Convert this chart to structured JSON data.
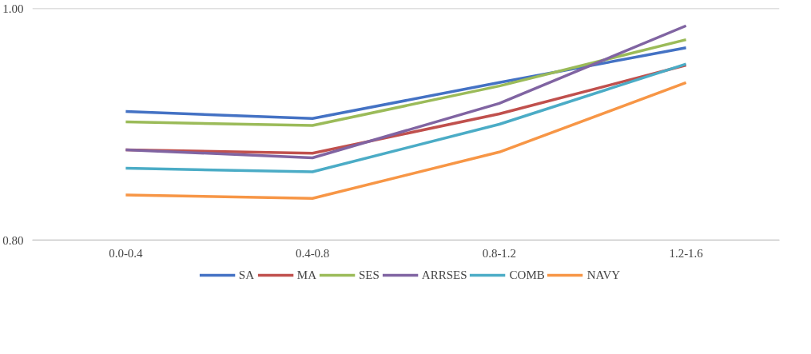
{
  "chart_data": {
    "type": "line",
    "categories": [
      "0.0-0.4",
      "0.4-0.8",
      "0.8-1.2",
      "1.2-1.6"
    ],
    "series": [
      {
        "name": "SA",
        "color": "#4472c4",
        "values": [
          0.911,
          0.905,
          0.936,
          0.966
        ]
      },
      {
        "name": "MA",
        "color": "#c0504d",
        "values": [
          0.878,
          0.875,
          0.909,
          0.951
        ]
      },
      {
        "name": "SES",
        "color": "#9bbb59",
        "values": [
          0.902,
          0.899,
          0.933,
          0.973
        ]
      },
      {
        "name": "ARRSES",
        "color": "#8064a2",
        "values": [
          0.878,
          0.871,
          0.918,
          0.985
        ]
      },
      {
        "name": "COMB",
        "color": "#4bacc6",
        "values": [
          0.862,
          0.859,
          0.9,
          0.952
        ]
      },
      {
        "name": "NAVY",
        "color": "#f79646",
        "values": [
          0.839,
          0.836,
          0.876,
          0.936
        ]
      }
    ],
    "ylim": [
      0.8,
      1.0
    ],
    "yticks": [
      {
        "value": 0.8,
        "label": "0.80"
      },
      {
        "value": 1.0,
        "label": "1.00"
      }
    ],
    "grid": "y",
    "legend": "bottom",
    "marker": "none",
    "line_style": "solid"
  }
}
